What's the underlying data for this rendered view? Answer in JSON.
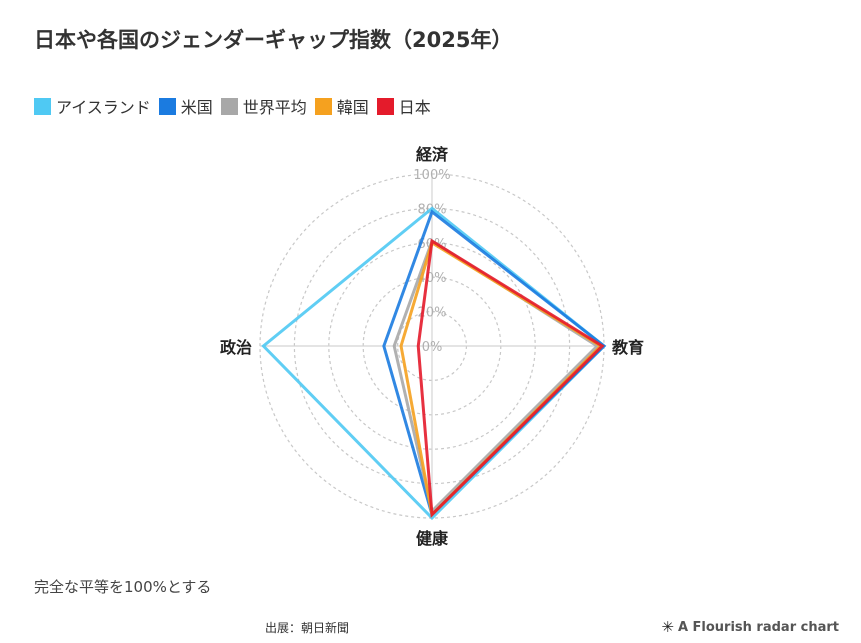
{
  "title": "日本や各国のジェンダーギャップ指数（2025年）",
  "note": "完全な平等を100%とする",
  "source": "出展：朝日新聞",
  "credit": {
    "icon": "flourish-logo-icon",
    "label": "A Flourish radar chart"
  },
  "chart_data": {
    "type": "radar",
    "axes": [
      "経済",
      "教育",
      "健康",
      "政治"
    ],
    "ticks": [
      "0%",
      "20%",
      "40%",
      "60%",
      "80%",
      "100%"
    ],
    "range": [
      0,
      100
    ],
    "grid": true,
    "legend_position": "top-left",
    "series": [
      {
        "name": "アイスランド",
        "color": "#4fc9f3",
        "values": [
          80,
          100,
          100,
          98
        ]
      },
      {
        "name": "米国",
        "color": "#1b7be0",
        "values": [
          78,
          100,
          98,
          28
        ]
      },
      {
        "name": "世界平均",
        "color": "#a8a8a8",
        "values": [
          61,
          96,
          96,
          22
        ]
      },
      {
        "name": "韓国",
        "color": "#f5a11f",
        "values": [
          60,
          98,
          98,
          18
        ]
      },
      {
        "name": "日本",
        "color": "#e41b2b",
        "values": [
          61,
          99,
          98,
          8
        ]
      }
    ]
  }
}
